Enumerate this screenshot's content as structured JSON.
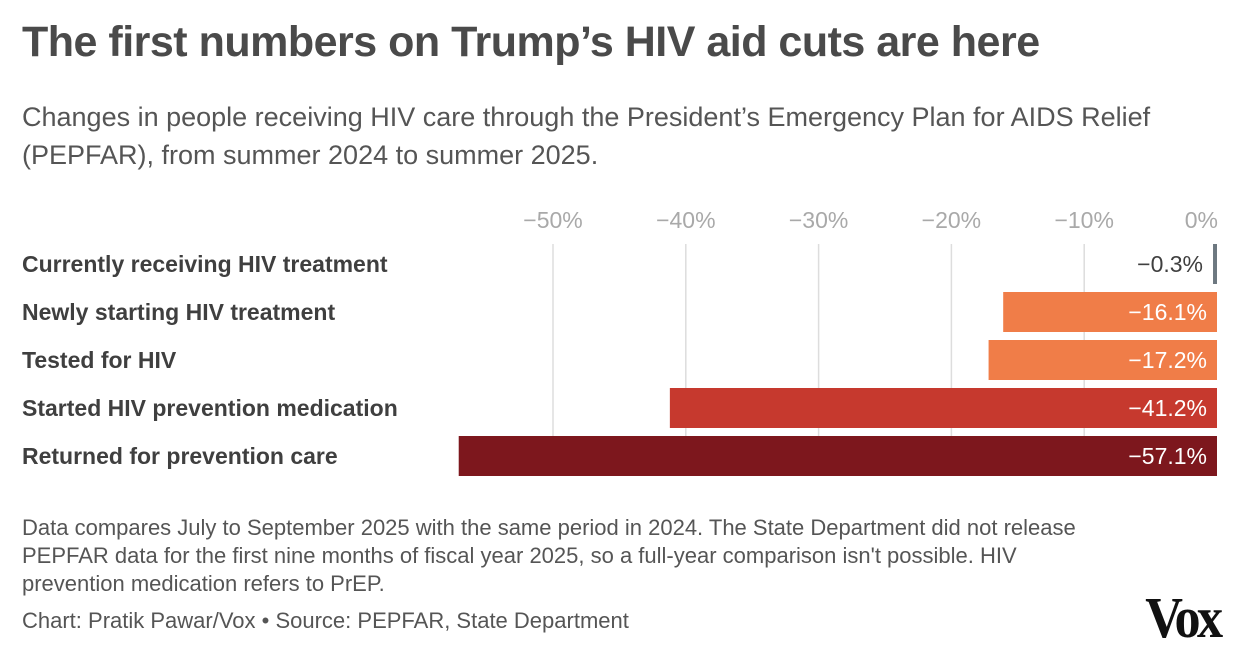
{
  "header": {
    "title": "The first numbers on Trump’s HIV aid cuts are here",
    "subtitle": "Changes in people receiving HIV care through the President’s Emergency Plan for AIDS Relief (PEPFAR), from summer 2024 to summer 2025."
  },
  "footer": {
    "note": "Data compares July to September 2025 with the same period in 2024. The State Department did not release PEPFAR data for the first nine months of fiscal year 2025, so a full-year comparison isn't possible. HIV prevention medication refers to PrEP.",
    "credit": "Chart: Pratik Pawar/Vox • Source: PEPFAR, State Department",
    "logo": "Vox"
  },
  "chart_data": {
    "type": "bar",
    "orientation": "horizontal",
    "title": "The first numbers on Trump’s HIV aid cuts are here",
    "subtitle": "Changes in people receiving HIV care through the President’s Emergency Plan for AIDS Relief (PEPFAR), from summer 2024 to summer 2025.",
    "xlabel": "",
    "ylabel": "",
    "xlim": [
      -57.1,
      0
    ],
    "x_ticks": [
      -50,
      -40,
      -30,
      -20,
      -10,
      0
    ],
    "x_tick_labels": [
      "−50%",
      "−40%",
      "−30%",
      "−20%",
      "−10%",
      "0%"
    ],
    "axis_position": "top",
    "grid": true,
    "categories": [
      "Currently receiving HIV treatment",
      "Newly starting HIV treatment",
      "Tested for HIV",
      "Started HIV prevention medication",
      "Returned for prevention care"
    ],
    "values": [
      -0.3,
      -16.1,
      -17.2,
      -41.2,
      -57.1
    ],
    "data_labels": [
      "−0.3%",
      "−16.1%",
      "−17.2%",
      "−41.2%",
      "−57.1%"
    ],
    "colors": [
      "#6d7880",
      "#f07d48",
      "#f07d48",
      "#c6392e",
      "#7d171d"
    ],
    "label_colors": [
      "#3f3f3f",
      "#ffffff",
      "#ffffff",
      "#ffffff",
      "#ffffff"
    ],
    "gridline_color": "#dddddd"
  }
}
